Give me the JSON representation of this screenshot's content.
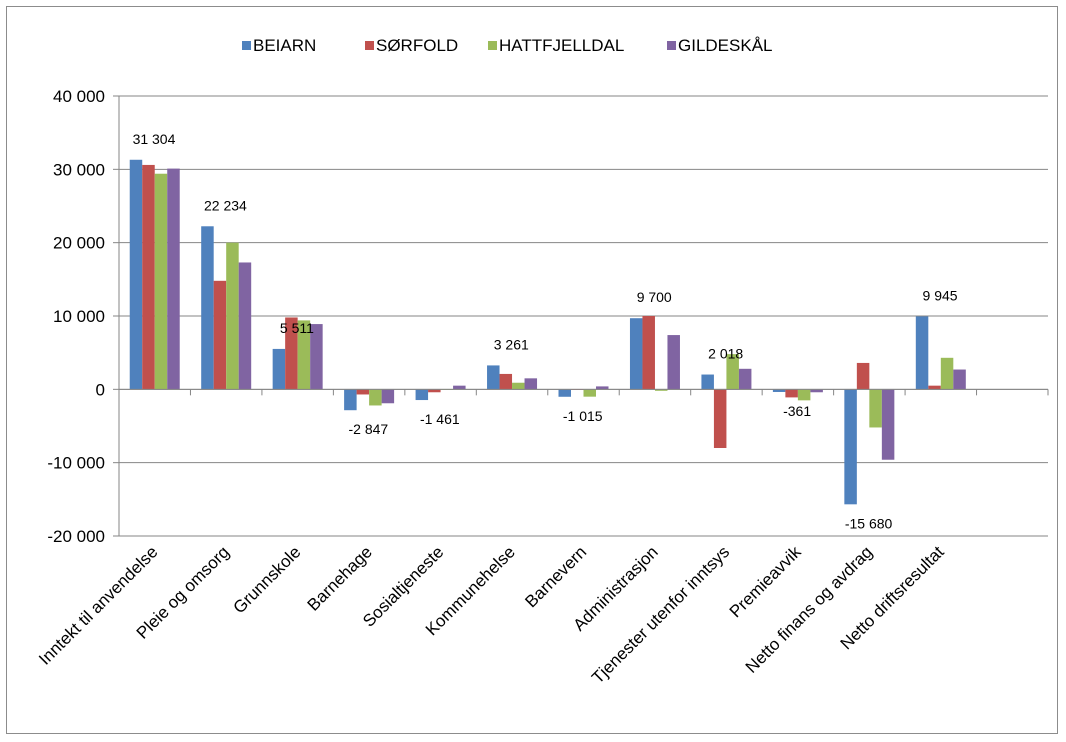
{
  "chart_data": {
    "type": "bar",
    "categories": [
      "Inntekt til anvendelse",
      "Pleie og omsorg",
      "Grunnskole",
      "Barnehage",
      "Sosialtjeneste",
      "Kommunehelse",
      "Barnevern",
      "Administrasjon",
      "Tjenester utenfor inntsys",
      "Premieavvik",
      "Netto finans og avdrag",
      "Netto driftsresultat"
    ],
    "series": [
      {
        "name": "BEIARN",
        "color": "#4F81BD",
        "values": [
          31304,
          22234,
          5511,
          -2847,
          -1461,
          3261,
          -1015,
          9700,
          2018,
          -361,
          -15680,
          9945
        ]
      },
      {
        "name": "SØRFOLD",
        "color": "#C0504D",
        "values": [
          30600,
          14800,
          9800,
          -700,
          -400,
          2100,
          0,
          10000,
          -8000,
          -1100,
          3600,
          500
        ]
      },
      {
        "name": "HATTFJELLDAL",
        "color": "#9BBB59",
        "values": [
          29400,
          20000,
          9400,
          -2200,
          0,
          900,
          -1000,
          -200,
          4800,
          -1500,
          -5200,
          4300
        ]
      },
      {
        "name": "GILDESKÅL",
        "color": "#8064A2",
        "values": [
          30100,
          17300,
          8900,
          -1900,
          500,
          1500,
          400,
          7400,
          2800,
          -400,
          -9600,
          2700
        ]
      }
    ],
    "data_labels": [
      "31 304",
      "22 234",
      "5 511",
      "-2 847",
      "-1 461",
      "3 261",
      "-1 015",
      "9 700",
      "2 018",
      "-361",
      "-15 680",
      "9 945"
    ],
    "y_ticks": [
      "40 000",
      "30 000",
      "20 000",
      "10 000",
      "0",
      "-10 000",
      "-20 000"
    ],
    "y_tick_values": [
      40000,
      30000,
      20000,
      10000,
      0,
      -10000,
      -20000
    ],
    "ylim": [
      -20000,
      40000
    ],
    "title": "",
    "xlabel": "",
    "ylabel": "",
    "grid": true,
    "legend_position": "top"
  }
}
